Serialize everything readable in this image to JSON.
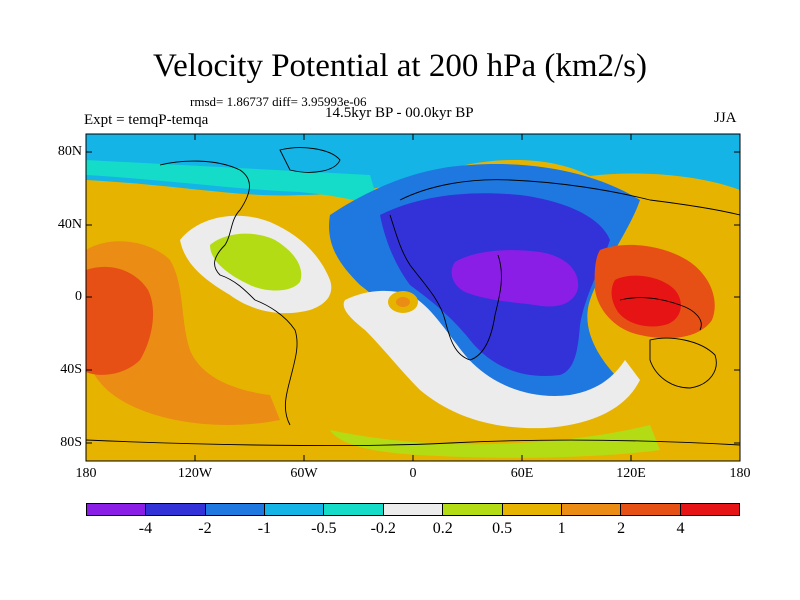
{
  "title": "Velocity Potential at 200 hPa (km2/s)",
  "stats": "rmsd= 1.86737 diff= 3.95993e-06",
  "experiment": "Expt = temqP-temqa",
  "period": "14.5kyr BP - 00.0kyr BP",
  "season": "JJA",
  "x_ticks": [
    "180",
    "120W",
    "60W",
    "0",
    "60E",
    "120E",
    "180"
  ],
  "y_ticks": [
    "80N",
    "40N",
    "0",
    "40S",
    "80S"
  ],
  "colorbar": {
    "labels": [
      "-4",
      "-2",
      "-1",
      "-0.5",
      "-0.2",
      "0.2",
      "0.5",
      "1",
      "2",
      "4"
    ],
    "colors": [
      "#8a1ee6",
      "#3232d8",
      "#1e78e0",
      "#14b4e6",
      "#14dcc8",
      "#ececec",
      "#b4dc14",
      "#e6b400",
      "#eb8c14",
      "#e65014",
      "#e61414"
    ]
  }
}
